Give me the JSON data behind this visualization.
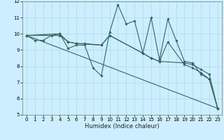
{
  "xlabel": "Humidex (Indice chaleur)",
  "bg_color": "#cceeff",
  "line_color": "#336666",
  "grid_color": "#aadddd",
  "xlim": [
    -0.5,
    23.5
  ],
  "ylim": [
    5,
    12
  ],
  "yticks": [
    5,
    6,
    7,
    8,
    9,
    10,
    11,
    12
  ],
  "xticks": [
    0,
    1,
    2,
    3,
    4,
    5,
    6,
    7,
    8,
    9,
    10,
    11,
    12,
    13,
    14,
    15,
    16,
    17,
    18,
    19,
    20,
    21,
    22,
    23
  ],
  "lines": [
    {
      "x": [
        0,
        1,
        2,
        3,
        4,
        5,
        6,
        7,
        8,
        9,
        10,
        11,
        12,
        13,
        14,
        15,
        16,
        17,
        18,
        19,
        20,
        21,
        22,
        23
      ],
      "y": [
        9.9,
        9.6,
        9.6,
        9.9,
        10.0,
        9.1,
        9.3,
        9.3,
        7.9,
        7.4,
        10.1,
        11.8,
        10.6,
        10.8,
        8.8,
        11.0,
        8.4,
        10.9,
        9.6,
        8.3,
        8.2,
        7.5,
        7.2,
        5.4
      ]
    },
    {
      "x": [
        0,
        4,
        5,
        6,
        7,
        9,
        10,
        14,
        15,
        16,
        19,
        20,
        21,
        22,
        23
      ],
      "y": [
        9.9,
        10.0,
        9.5,
        9.4,
        9.4,
        9.3,
        9.9,
        8.8,
        8.5,
        8.3,
        8.2,
        8.1,
        7.8,
        7.5,
        5.4
      ]
    },
    {
      "x": [
        0,
        4,
        5,
        6,
        9,
        10,
        14,
        15,
        16,
        17,
        19,
        20,
        21,
        22,
        23
      ],
      "y": [
        9.9,
        9.9,
        9.5,
        9.4,
        9.3,
        9.9,
        8.8,
        8.5,
        8.3,
        9.5,
        8.1,
        7.9,
        7.6,
        7.2,
        5.4
      ]
    },
    {
      "x": [
        0,
        23
      ],
      "y": [
        9.9,
        5.4
      ]
    }
  ]
}
